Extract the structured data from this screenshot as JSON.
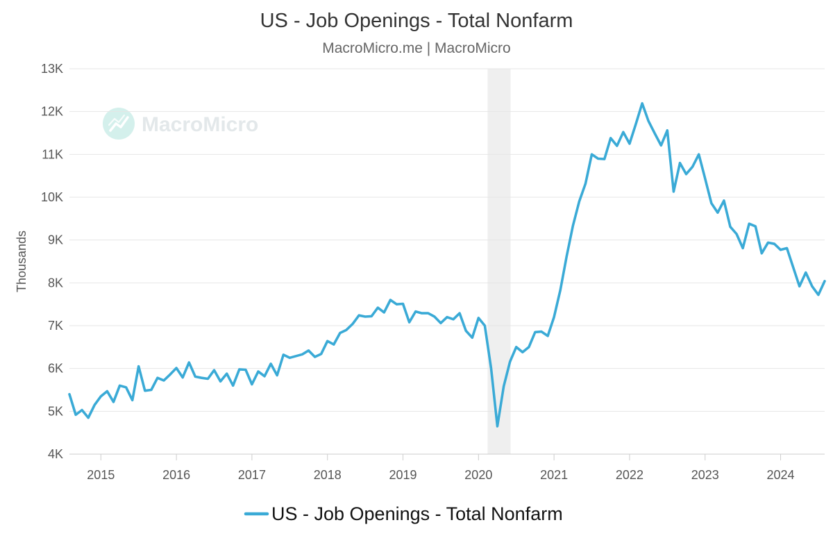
{
  "chart_data": {
    "type": "line",
    "title": "US - Job Openings - Total Nonfarm",
    "subtitle": "MacroMicro.me | MacroMicro",
    "ylabel": "Thousands",
    "xlabel": "",
    "watermark": "MacroMicro",
    "ylim": [
      4000,
      13000
    ],
    "xlim": [
      "2014-08",
      "2024-08"
    ],
    "y_ticks": [
      4000,
      5000,
      6000,
      7000,
      8000,
      9000,
      10000,
      11000,
      12000,
      13000
    ],
    "y_tick_labels": [
      "4K",
      "5K",
      "6K",
      "7K",
      "8K",
      "9K",
      "10K",
      "11K",
      "12K",
      "13K"
    ],
    "x_ticks": [
      "2015-01",
      "2016-01",
      "2017-01",
      "2018-01",
      "2019-01",
      "2020-01",
      "2021-01",
      "2022-01",
      "2023-01",
      "2024-01"
    ],
    "x_tick_labels": [
      "2015",
      "2016",
      "2017",
      "2018",
      "2019",
      "2020",
      "2021",
      "2022",
      "2023",
      "2024"
    ],
    "grid": true,
    "legend_position": "bottom-center",
    "recession_band": {
      "start": "2020-03",
      "end": "2020-05",
      "color": "#efefef"
    },
    "series": [
      {
        "name": "US - Job Openings - Total Nonfarm",
        "color": "#3aaad6",
        "points": [
          [
            "2014-08",
            5400
          ],
          [
            "2014-09",
            4920
          ],
          [
            "2014-10",
            5030
          ],
          [
            "2014-11",
            4850
          ],
          [
            "2014-12",
            5150
          ],
          [
            "2015-01",
            5350
          ],
          [
            "2015-02",
            5470
          ],
          [
            "2015-03",
            5220
          ],
          [
            "2015-04",
            5600
          ],
          [
            "2015-05",
            5560
          ],
          [
            "2015-06",
            5260
          ],
          [
            "2015-07",
            6050
          ],
          [
            "2015-08",
            5480
          ],
          [
            "2015-09",
            5500
          ],
          [
            "2015-10",
            5780
          ],
          [
            "2015-11",
            5720
          ],
          [
            "2015-12",
            5860
          ],
          [
            "2016-01",
            6010
          ],
          [
            "2016-02",
            5790
          ],
          [
            "2016-03",
            6140
          ],
          [
            "2016-04",
            5810
          ],
          [
            "2016-05",
            5780
          ],
          [
            "2016-06",
            5760
          ],
          [
            "2016-07",
            5960
          ],
          [
            "2016-08",
            5700
          ],
          [
            "2016-09",
            5880
          ],
          [
            "2016-10",
            5600
          ],
          [
            "2016-11",
            5980
          ],
          [
            "2016-12",
            5970
          ],
          [
            "2017-01",
            5630
          ],
          [
            "2017-02",
            5930
          ],
          [
            "2017-03",
            5820
          ],
          [
            "2017-04",
            6110
          ],
          [
            "2017-05",
            5840
          ],
          [
            "2017-06",
            6320
          ],
          [
            "2017-07",
            6250
          ],
          [
            "2017-08",
            6290
          ],
          [
            "2017-09",
            6330
          ],
          [
            "2017-10",
            6420
          ],
          [
            "2017-11",
            6270
          ],
          [
            "2017-12",
            6340
          ],
          [
            "2018-01",
            6640
          ],
          [
            "2018-02",
            6560
          ],
          [
            "2018-03",
            6830
          ],
          [
            "2018-04",
            6900
          ],
          [
            "2018-05",
            7040
          ],
          [
            "2018-06",
            7240
          ],
          [
            "2018-07",
            7210
          ],
          [
            "2018-08",
            7220
          ],
          [
            "2018-09",
            7420
          ],
          [
            "2018-10",
            7310
          ],
          [
            "2018-11",
            7600
          ],
          [
            "2018-12",
            7500
          ],
          [
            "2019-01",
            7510
          ],
          [
            "2019-02",
            7080
          ],
          [
            "2019-03",
            7330
          ],
          [
            "2019-04",
            7290
          ],
          [
            "2019-05",
            7290
          ],
          [
            "2019-06",
            7210
          ],
          [
            "2019-07",
            7060
          ],
          [
            "2019-08",
            7200
          ],
          [
            "2019-09",
            7150
          ],
          [
            "2019-10",
            7290
          ],
          [
            "2019-11",
            6880
          ],
          [
            "2019-12",
            6720
          ],
          [
            "2020-01",
            7180
          ],
          [
            "2020-02",
            7000
          ],
          [
            "2020-03",
            6000
          ],
          [
            "2020-04",
            4650
          ],
          [
            "2020-05",
            5580
          ],
          [
            "2020-06",
            6160
          ],
          [
            "2020-07",
            6500
          ],
          [
            "2020-08",
            6380
          ],
          [
            "2020-09",
            6500
          ],
          [
            "2020-10",
            6850
          ],
          [
            "2020-11",
            6860
          ],
          [
            "2020-12",
            6760
          ],
          [
            "2021-01",
            7200
          ],
          [
            "2021-02",
            7830
          ],
          [
            "2021-03",
            8620
          ],
          [
            "2021-04",
            9330
          ],
          [
            "2021-05",
            9900
          ],
          [
            "2021-06",
            10320
          ],
          [
            "2021-07",
            11000
          ],
          [
            "2021-08",
            10900
          ],
          [
            "2021-09",
            10890
          ],
          [
            "2021-10",
            11380
          ],
          [
            "2021-11",
            11200
          ],
          [
            "2021-12",
            11520
          ],
          [
            "2022-01",
            11250
          ],
          [
            "2022-02",
            11710
          ],
          [
            "2022-03",
            12190
          ],
          [
            "2022-04",
            11780
          ],
          [
            "2022-05",
            11490
          ],
          [
            "2022-06",
            11210
          ],
          [
            "2022-07",
            11560
          ],
          [
            "2022-08",
            10130
          ],
          [
            "2022-09",
            10800
          ],
          [
            "2022-10",
            10540
          ],
          [
            "2022-11",
            10710
          ],
          [
            "2022-12",
            11000
          ],
          [
            "2023-01",
            10440
          ],
          [
            "2023-02",
            9860
          ],
          [
            "2023-03",
            9640
          ],
          [
            "2023-04",
            9920
          ],
          [
            "2023-05",
            9310
          ],
          [
            "2023-06",
            9140
          ],
          [
            "2023-07",
            8810
          ],
          [
            "2023-08",
            9380
          ],
          [
            "2023-09",
            9320
          ],
          [
            "2023-10",
            8690
          ],
          [
            "2023-11",
            8940
          ],
          [
            "2023-12",
            8910
          ],
          [
            "2024-01",
            8770
          ],
          [
            "2024-02",
            8810
          ],
          [
            "2024-03",
            8360
          ],
          [
            "2024-04",
            7920
          ],
          [
            "2024-05",
            8240
          ],
          [
            "2024-06",
            7920
          ],
          [
            "2024-07",
            7720
          ],
          [
            "2024-08",
            8040
          ]
        ]
      }
    ]
  }
}
